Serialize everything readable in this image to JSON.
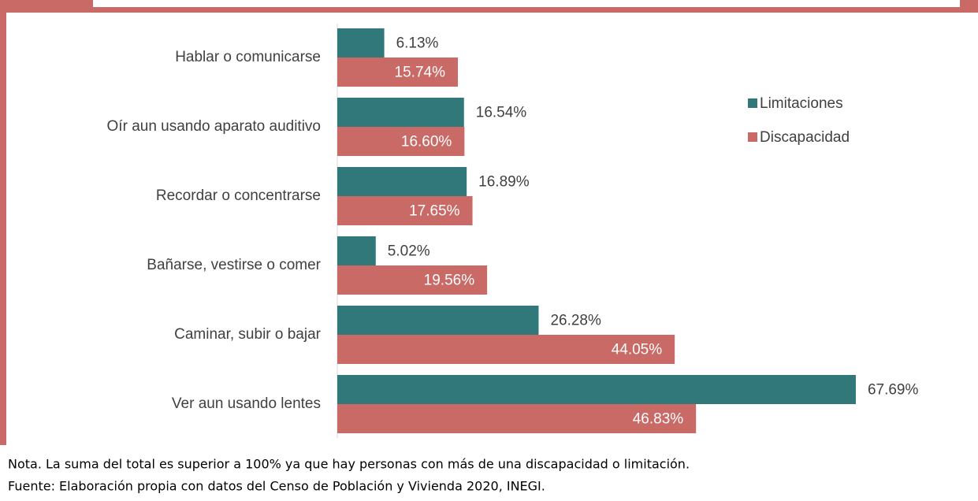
{
  "chart_data": {
    "type": "bar",
    "orientation": "horizontal",
    "categories": [
      "Hablar o comunicarse",
      "Oír aun usando aparato auditivo",
      "Recordar o concentrarse",
      "Bañarse, vestirse o comer",
      "Caminar, subir o bajar",
      "Ver aun usando lentes"
    ],
    "series": [
      {
        "name": "Limitaciones",
        "color": "#31787a",
        "values": [
          6.13,
          16.54,
          16.89,
          5.02,
          26.28,
          67.69
        ],
        "value_labels": [
          "6.13%",
          "16.54%",
          "16.89%",
          "5.02%",
          "26.28%",
          "67.69%"
        ]
      },
      {
        "name": "Discapacidad",
        "color": "#c96a67",
        "values": [
          15.74,
          16.6,
          17.65,
          19.56,
          44.05,
          46.83
        ],
        "value_labels": [
          "15.74%",
          "16.60%",
          "17.65%",
          "19.56%",
          "44.05%",
          "46.83%"
        ]
      }
    ],
    "legend": "right",
    "notes": [
      "Nota. La suma del total es superior a 100% ya que hay personas con más de una discapacidad o limitación.",
      "Fuente: Elaboración propia con datos del Censo de Población y Vivienda 2020, INEGI."
    ]
  }
}
